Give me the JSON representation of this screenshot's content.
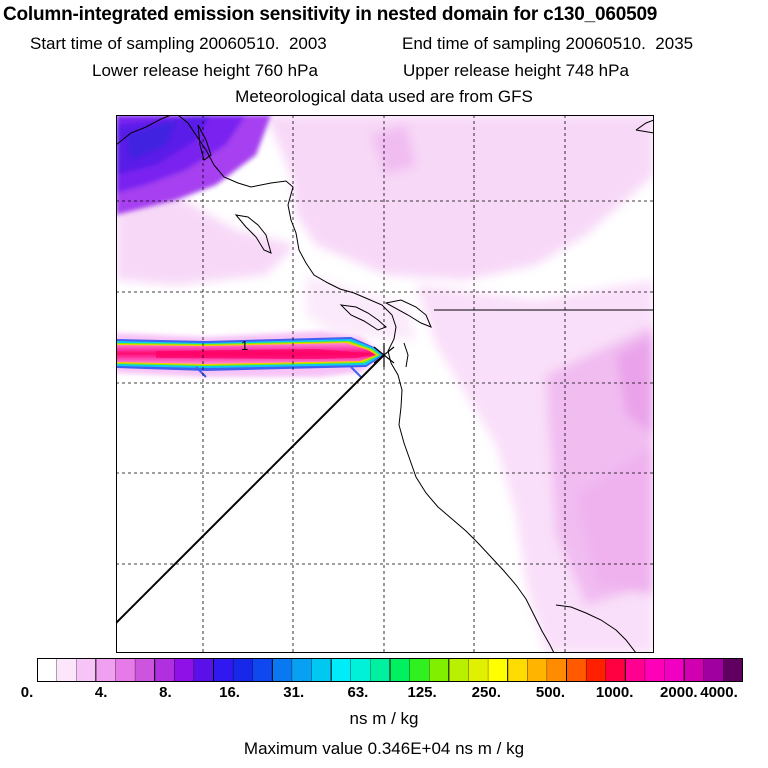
{
  "title": "Column-integrated emission sensitivity in nested domain for c130_060509",
  "sampling": {
    "start_label": "Start time of sampling",
    "start_value": "20060510.  2003",
    "end_label": "End time of sampling",
    "end_value": "20060510.  2035"
  },
  "release": {
    "lower_label": "Lower release height",
    "lower_value": "760 hPa",
    "upper_label": "Upper release height",
    "upper_value": "748 hPa"
  },
  "met_note": "Meteorological data used are from GFS",
  "contour_label": "1",
  "colorbar": {
    "tick_labels": [
      "0.",
      "4.",
      "8.",
      "16.",
      "31.",
      "63.",
      "125.",
      "250.",
      "500.",
      "1000.",
      "2000.",
      "4000."
    ],
    "colors": [
      "#ffffff",
      "#fce6fc",
      "#f7c4f7",
      "#f0a0f0",
      "#e57ae8",
      "#cc55dd",
      "#b030e0",
      "#9010e8",
      "#5a10e8",
      "#3018f0",
      "#1828e8",
      "#1048f0",
      "#0a78f0",
      "#08a0f0",
      "#00c8f0",
      "#00ecf8",
      "#00f0d8",
      "#00f0a0",
      "#00f060",
      "#30f020",
      "#80f000",
      "#b8f000",
      "#e0f000",
      "#ffff00",
      "#ffdc00",
      "#ffb400",
      "#ff8c00",
      "#ff5a00",
      "#ff2000",
      "#ff0040",
      "#ff0090",
      "#ff00b8",
      "#f000c0",
      "#d000b0",
      "#a000a0",
      "#600060"
    ],
    "units": "ns m / kg"
  },
  "max_value": "Maximum value  0.346E+04 ns m / kg"
}
